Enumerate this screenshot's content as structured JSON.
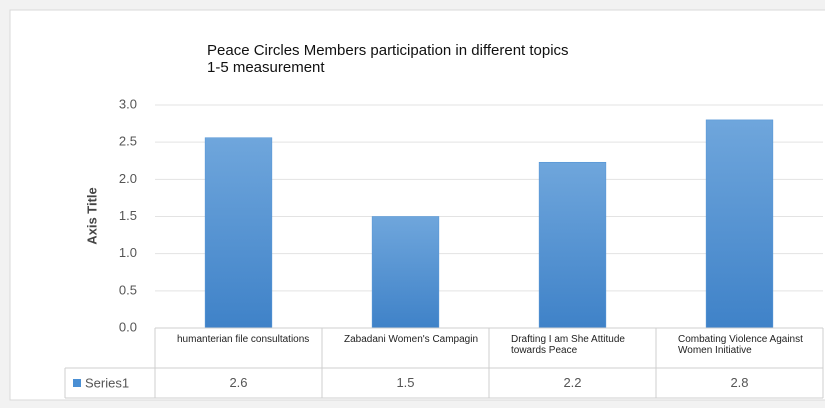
{
  "chart_data": {
    "type": "bar",
    "title": "Peace Circles Members participation in different topics",
    "subtitle": "1-5 measurement",
    "y_label": "Axis Title",
    "categories": [
      "humanterian file consultations",
      "Zabadani Women's Campagin",
      "Drafting I am She Attitude towards Peace",
      "Combating Violence Against Women Initiative"
    ],
    "series": [
      {
        "name": "Series1",
        "color": "#4a8fd4",
        "values": [
          2.56,
          1.5,
          2.23,
          2.8
        ],
        "value_labels": [
          "2.6",
          "1.5",
          "2.2",
          "2.8"
        ]
      }
    ],
    "ylim": [
      0,
      3
    ],
    "yticks": [
      {
        "value": 0,
        "label": "0.0"
      },
      {
        "value": 0.5,
        "label": "0.5"
      },
      {
        "value": 1,
        "label": "1.0"
      },
      {
        "value": 1.5,
        "label": "1.5"
      },
      {
        "value": 2,
        "label": "2.0"
      },
      {
        "value": 2.5,
        "label": "2.5"
      },
      {
        "value": 3,
        "label": "3.0"
      }
    ],
    "grid": true,
    "data_table": true
  }
}
